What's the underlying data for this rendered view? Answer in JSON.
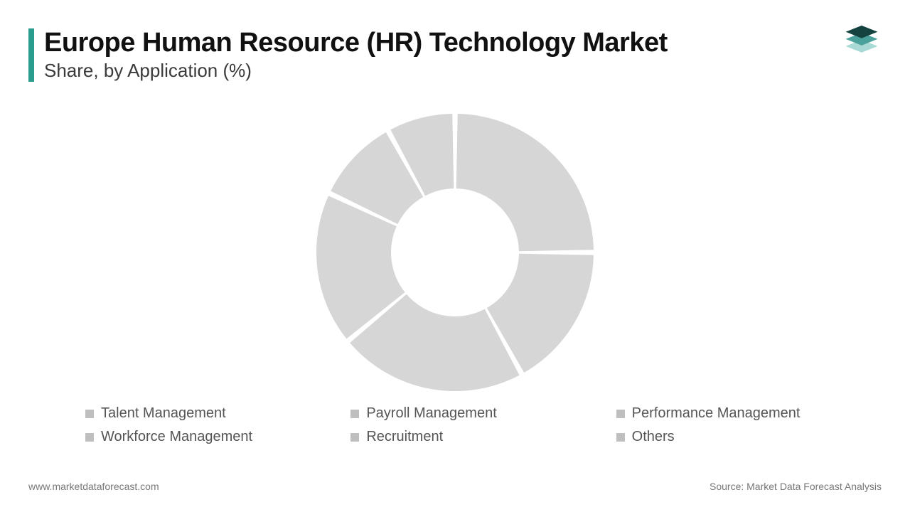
{
  "header": {
    "title": "Europe Human Resource (HR) Technology Market",
    "subtitle": "Share, by Application (%)",
    "accent_color": "#2a9d8f",
    "title_color": "#111111",
    "title_fontsize": 38,
    "subtitle_color": "#3a3a3a",
    "subtitle_fontsize": 26
  },
  "logo": {
    "top_color": "#14423f",
    "mid_color": "#4aa09a",
    "bot_color": "#a9d9d4"
  },
  "chart": {
    "type": "donut",
    "outer_radius": 195,
    "inner_radius": 90,
    "gap_deg": 2.2,
    "background_color": "#ffffff",
    "slice_color": "#d6d6d6",
    "slices": [
      {
        "label": "Talent Management",
        "value": 25
      },
      {
        "label": "Payroll Management",
        "value": 17
      },
      {
        "label": "Performance Management",
        "value": 22
      },
      {
        "label": "Workforce Management",
        "value": 18
      },
      {
        "label": "Recruitment",
        "value": 10
      },
      {
        "label": "Others",
        "value": 8
      }
    ]
  },
  "legend": {
    "marker_color": "#bfbfbf",
    "text_color": "#555555",
    "fontsize": 20,
    "items": [
      "Talent Management",
      "Payroll Management",
      "Performance Management",
      "Workforce Management",
      "Recruitment",
      "Others"
    ]
  },
  "footer": {
    "left": "www.marketdataforecast.com",
    "right": "Source: Market Data Forecast Analysis",
    "color": "#777777",
    "fontsize": 14
  }
}
